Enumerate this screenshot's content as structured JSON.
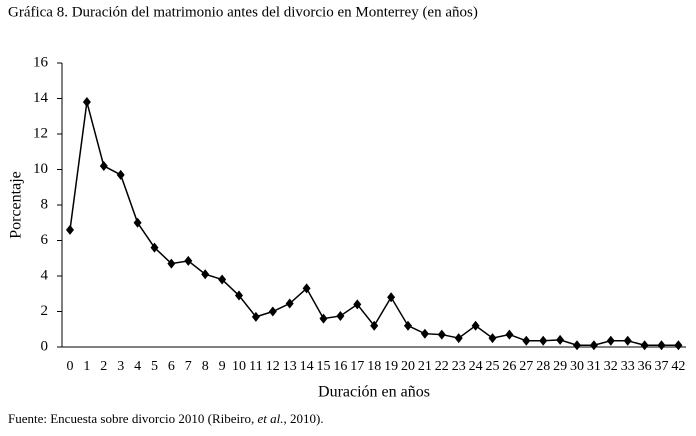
{
  "chart_data": {
    "type": "line",
    "title": "Gráfica 8. Duración del matrimonio antes del divorcio en Monterrey (en años)",
    "x_label": "Duración en años",
    "y_label": "Porcentaje",
    "source": [
      "Fuente: Encuesta sobre divorcio 2010 (Ribeiro, ",
      "et al.",
      ", 2010)."
    ],
    "categories": [
      "0",
      "1",
      "2",
      "3",
      "4",
      "5",
      "6",
      "7",
      "8",
      "9",
      "10",
      "11",
      "12",
      "13",
      "14",
      "15",
      "16",
      "17",
      "18",
      "19",
      "20",
      "21",
      "22",
      "23",
      "24",
      "25",
      "26",
      "27",
      "28",
      "29",
      "30",
      "31",
      "32",
      "33",
      "36",
      "37",
      "42"
    ],
    "series": [
      {
        "name": "Porcentaje",
        "color": "#000000",
        "values": [
          6.6,
          13.8,
          10.2,
          9.7,
          7.0,
          5.6,
          4.7,
          4.85,
          4.1,
          3.8,
          2.9,
          1.7,
          2.0,
          2.45,
          3.3,
          1.6,
          1.75,
          2.4,
          1.2,
          2.8,
          1.2,
          0.75,
          0.7,
          0.5,
          1.2,
          0.5,
          0.7,
          0.35,
          0.35,
          0.4,
          0.1,
          0.1,
          0.35,
          0.35,
          0.1,
          0.1,
          0.1
        ]
      }
    ],
    "ylim": [
      0,
      16
    ],
    "yticks": [
      0,
      2,
      4,
      6,
      8,
      10,
      12,
      14,
      16
    ],
    "grid": false
  }
}
